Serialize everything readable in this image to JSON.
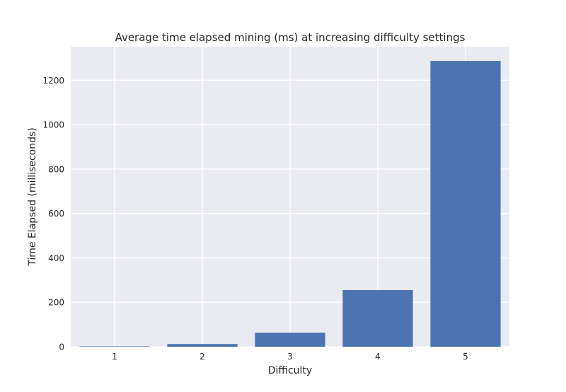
{
  "chart_data": {
    "type": "bar",
    "title": "Average time elapsed mining (ms) at increasing difficulty settings",
    "xlabel": "Difficulty",
    "ylabel": "Time Elapsed (milliseconds)",
    "categories": [
      "1",
      "2",
      "3",
      "4",
      "5"
    ],
    "values": [
      2,
      12,
      63,
      255,
      1287
    ],
    "ylim": [
      0,
      1351
    ],
    "yticks": [
      0,
      200,
      400,
      600,
      800,
      1000,
      1200
    ],
    "grid": true,
    "colors": {
      "bar": "#4c72b0",
      "background": "#eaeaf2",
      "grid": "#ffffff"
    }
  }
}
